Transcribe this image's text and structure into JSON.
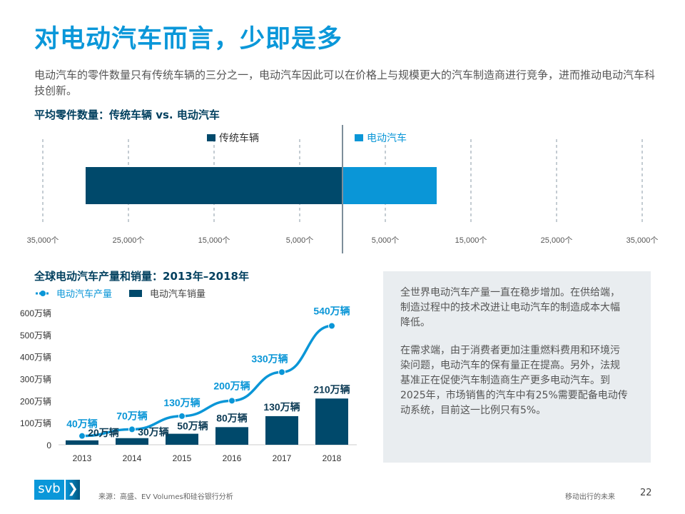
{
  "title": "对电动汽车而言，少即是多",
  "intro": "电动汽车的零件数量只有传统车辆的三分之一，电动汽车因此可以在价格上与规模更大的汽车制造商进行竞争，进而推动电动汽车科技创新。",
  "chart_data": [
    {
      "type": "bar",
      "orientation": "horizontal-diverging",
      "title": "平均零件数量：传统车辆 vs. 电动汽车",
      "series": [
        {
          "name": "传统车辆",
          "value": 30000,
          "color": "#00496b",
          "side": "left"
        },
        {
          "name": "电动汽车",
          "value": 11000,
          "color": "#0a96d7",
          "side": "right"
        }
      ],
      "xlim": [
        -35000,
        35000
      ],
      "tick_labels_left": [
        "35,000个",
        "25,000个",
        "15,000个",
        "5,000个"
      ],
      "tick_values_left": [
        35000,
        25000,
        15000,
        5000
      ],
      "tick_labels_right": [
        "5,000个",
        "15,000个",
        "25,000个",
        "35,000个"
      ],
      "tick_values_right": [
        5000,
        15000,
        25000,
        35000
      ],
      "grid": true,
      "legend": "top"
    },
    {
      "type": "bar+line",
      "title": "全球电动汽车产量和销量：2013年–2018年",
      "categories": [
        "2013",
        "2014",
        "2015",
        "2016",
        "2017",
        "2018"
      ],
      "series": [
        {
          "name": "电动汽车产量",
          "type": "line",
          "color": "#0a96d7",
          "values": [
            40,
            70,
            130,
            200,
            330,
            540
          ],
          "labels": [
            "40万辆",
            "70万辆",
            "130万辆",
            "200万辆",
            "330万辆",
            "540万辆"
          ]
        },
        {
          "name": "电动汽车销量",
          "type": "bar",
          "color": "#00496b",
          "values": [
            20,
            30,
            50,
            80,
            130,
            210
          ],
          "labels": [
            "20万辆",
            "30万辆",
            "50万辆",
            "80万辆",
            "130万辆",
            "210万辆"
          ]
        }
      ],
      "ylim": [
        0,
        600
      ],
      "yticks": [
        0,
        100,
        200,
        300,
        400,
        500,
        600
      ],
      "ytick_labels": [
        "0",
        "100万辆",
        "200万辆",
        "300万辆",
        "400万辆",
        "500万辆",
        "600万辆"
      ],
      "ylabel": "",
      "xlabel": "",
      "legend": "top-left"
    }
  ],
  "sidebar": {
    "para1": "全世界电动汽车产量一直在稳步增加。在供给端，制造过程中的技术改进让电动汽车的制造成本大幅降低。",
    "para2": "在需求端，由于消费者更加注重燃料费用和环境污染问题，电动汽车的保有量正在提高。另外，法规基准正在促使汽车制造商生产更多电动汽车。到2025年，市场销售的汽车中有25%需要配备电动传动系统，目前这一比例只有5%。"
  },
  "footer": {
    "logo_text": "svb",
    "logo_chevron": "❯",
    "source": "来源：高盛、EV Volumes和硅谷银行分析",
    "section": "移动出行的未来",
    "page": "22"
  }
}
